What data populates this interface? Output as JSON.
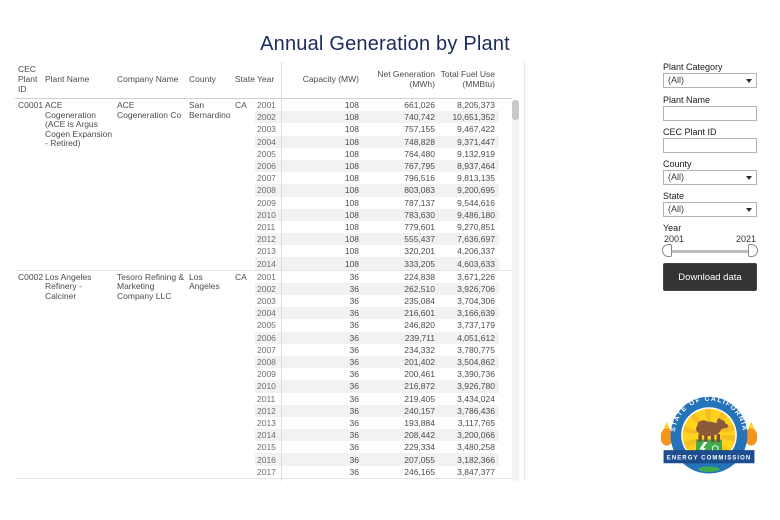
{
  "title": "Annual Generation by Plant",
  "table": {
    "headers": [
      "CEC Plant ID",
      "Plant Name",
      "Company Name",
      "County",
      "State",
      "Year",
      "Capacity (MW)",
      "Net Generation (MWh)",
      "Total Fuel Use (MMBtu)"
    ],
    "groups": [
      {
        "plant_id": "C0001",
        "plant_name": "ACE Cogeneration (ACE is Argus Cogen Expansion - Retired)",
        "company_name": "ACE Cogeneration Co",
        "county": "San Bernardino",
        "state": "CA",
        "rows": [
          {
            "year": "2001",
            "capacity": "108",
            "net_generation": "661,026",
            "total_fuel_use": "8,205,373"
          },
          {
            "year": "2002",
            "capacity": "108",
            "net_generation": "740,742",
            "total_fuel_use": "10,651,352"
          },
          {
            "year": "2003",
            "capacity": "108",
            "net_generation": "757,155",
            "total_fuel_use": "9,467,422"
          },
          {
            "year": "2004",
            "capacity": "108",
            "net_generation": "748,828",
            "total_fuel_use": "9,371,447"
          },
          {
            "year": "2005",
            "capacity": "108",
            "net_generation": "764,480",
            "total_fuel_use": "9,132,919"
          },
          {
            "year": "2006",
            "capacity": "108",
            "net_generation": "767,795",
            "total_fuel_use": "8,937,464"
          },
          {
            "year": "2007",
            "capacity": "108",
            "net_generation": "796,516",
            "total_fuel_use": "9,813,135"
          },
          {
            "year": "2008",
            "capacity": "108",
            "net_generation": "803,083",
            "total_fuel_use": "9,200,695"
          },
          {
            "year": "2009",
            "capacity": "108",
            "net_generation": "787,137",
            "total_fuel_use": "9,544,616"
          },
          {
            "year": "2010",
            "capacity": "108",
            "net_generation": "783,630",
            "total_fuel_use": "9,486,180"
          },
          {
            "year": "2011",
            "capacity": "108",
            "net_generation": "779,601",
            "total_fuel_use": "9,270,851"
          },
          {
            "year": "2012",
            "capacity": "108",
            "net_generation": "555,437",
            "total_fuel_use": "7,636,697"
          },
          {
            "year": "2013",
            "capacity": "108",
            "net_generation": "320,201",
            "total_fuel_use": "4,206,337"
          },
          {
            "year": "2014",
            "capacity": "108",
            "net_generation": "333,205",
            "total_fuel_use": "4,603,633"
          }
        ]
      },
      {
        "plant_id": "C0002",
        "plant_name": "Los Angeles Refinery - Calciner",
        "company_name": "Tesoro Refining & Marketing Company LLC",
        "county": "Los Angeles",
        "state": "CA",
        "rows": [
          {
            "year": "2001",
            "capacity": "36",
            "net_generation": "224,838",
            "total_fuel_use": "3,671,226"
          },
          {
            "year": "2002",
            "capacity": "36",
            "net_generation": "262,510",
            "total_fuel_use": "3,926,706"
          },
          {
            "year": "2003",
            "capacity": "36",
            "net_generation": "235,084",
            "total_fuel_use": "3,704,306"
          },
          {
            "year": "2004",
            "capacity": "36",
            "net_generation": "216,601",
            "total_fuel_use": "3,166,639"
          },
          {
            "year": "2005",
            "capacity": "36",
            "net_generation": "246,820",
            "total_fuel_use": "3,737,179"
          },
          {
            "year": "2006",
            "capacity": "36",
            "net_generation": "239,711",
            "total_fuel_use": "4,051,612"
          },
          {
            "year": "2007",
            "capacity": "36",
            "net_generation": "234,332",
            "total_fuel_use": "3,780,775"
          },
          {
            "year": "2008",
            "capacity": "36",
            "net_generation": "201,402",
            "total_fuel_use": "3,504,862"
          },
          {
            "year": "2009",
            "capacity": "36",
            "net_generation": "200,461",
            "total_fuel_use": "3,390,736"
          },
          {
            "year": "2010",
            "capacity": "36",
            "net_generation": "216,872",
            "total_fuel_use": "3,926,780"
          },
          {
            "year": "2011",
            "capacity": "36",
            "net_generation": "219,405",
            "total_fuel_use": "3,434,024"
          },
          {
            "year": "2012",
            "capacity": "36",
            "net_generation": "240,157",
            "total_fuel_use": "3,786,436"
          },
          {
            "year": "2013",
            "capacity": "36",
            "net_generation": "193,884",
            "total_fuel_use": "3,117,765"
          },
          {
            "year": "2014",
            "capacity": "36",
            "net_generation": "208,442",
            "total_fuel_use": "3,200,066"
          },
          {
            "year": "2015",
            "capacity": "36",
            "net_generation": "229,334",
            "total_fuel_use": "3,480,258"
          },
          {
            "year": "2016",
            "capacity": "36",
            "net_generation": "207,055",
            "total_fuel_use": "3,182,366"
          },
          {
            "year": "2017",
            "capacity": "36",
            "net_generation": "246,165",
            "total_fuel_use": "3,847,377"
          }
        ]
      }
    ]
  },
  "sidebar": {
    "plant_category": {
      "label": "Plant Category",
      "value": "(All)"
    },
    "plant_name": {
      "label": "Plant Name",
      "value": ""
    },
    "cec_plant_id": {
      "label": "CEC Plant ID",
      "value": ""
    },
    "county": {
      "label": "County",
      "value": "(All)"
    },
    "state": {
      "label": "State",
      "value": "(All)"
    },
    "year": {
      "label": "Year",
      "min": "2001",
      "max": "2021"
    },
    "download_label": "Download data"
  },
  "logo": {
    "arc_text": "STATE OF CALIFORNIA",
    "banner_text": "ENERGY COMMISSION"
  },
  "colors": {
    "title_navy": "#1b2a5f",
    "button_bg": "#333333",
    "row_band": "#f2f2f2",
    "logo_blue": "#2573b9",
    "logo_yellow": "#ffd41f",
    "logo_green": "#3fad49",
    "logo_banner": "#1d4e8f",
    "logo_orange": "#f7941d",
    "logo_bear": "#8a5a3a"
  }
}
